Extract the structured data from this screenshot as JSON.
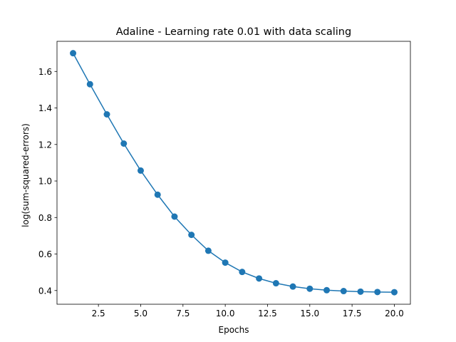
{
  "chart_data": {
    "type": "line",
    "title": "Adaline - Learning rate 0.01 with data scaling",
    "xlabel": "Epochs",
    "ylabel": "log(sum-squared-errors)",
    "xlim": [
      0.05,
      20.95
    ],
    "ylim": [
      0.325,
      1.765
    ],
    "grid": false,
    "marker": "circle",
    "color": "#1f77b4",
    "xticks": [
      2.5,
      5.0,
      7.5,
      10.0,
      12.5,
      15.0,
      17.5,
      20.0
    ],
    "xtick_labels": [
      "2.5",
      "5.0",
      "7.5",
      "10.0",
      "12.5",
      "15.0",
      "17.5",
      "20.0"
    ],
    "yticks": [
      0.4,
      0.6,
      0.8,
      1.0,
      1.2,
      1.4,
      1.6
    ],
    "ytick_labels": [
      "0.4",
      "0.6",
      "0.8",
      "1.0",
      "1.2",
      "1.4",
      "1.6"
    ],
    "series": [
      {
        "x": [
          1,
          2,
          3,
          4,
          5,
          6,
          7,
          8,
          9,
          10,
          11,
          12,
          13,
          14,
          15,
          16,
          17,
          18,
          19,
          20
        ],
        "values": [
          1.7,
          1.53,
          1.365,
          1.205,
          1.057,
          0.925,
          0.805,
          0.705,
          0.618,
          0.553,
          0.502,
          0.466,
          0.44,
          0.422,
          0.41,
          0.402,
          0.397,
          0.394,
          0.392,
          0.391
        ]
      }
    ]
  }
}
